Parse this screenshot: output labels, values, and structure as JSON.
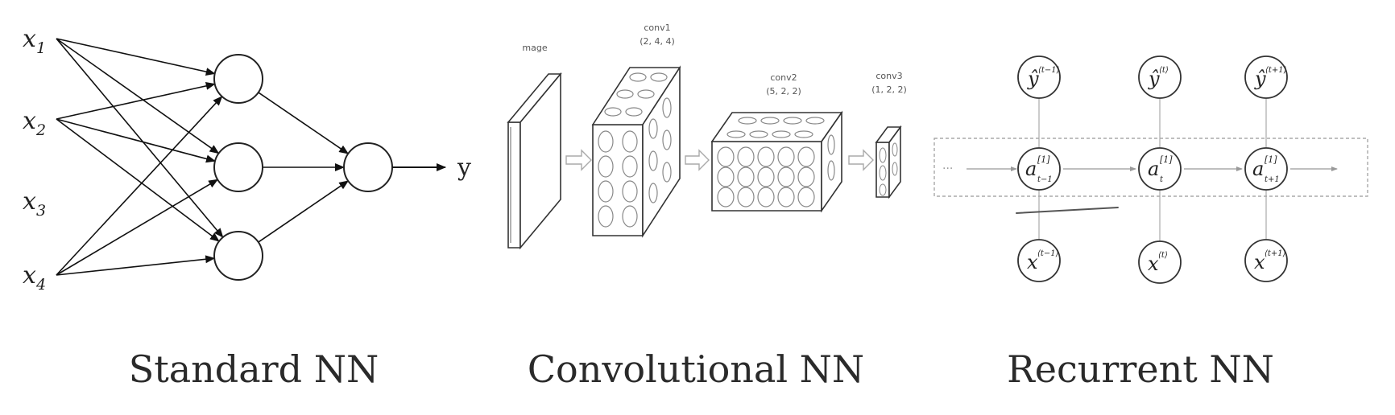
{
  "standard_nn": {
    "caption": "Standard NN",
    "inputs": [
      {
        "base": "x",
        "sub": "1"
      },
      {
        "base": "x",
        "sub": "2"
      },
      {
        "base": "x",
        "sub": "3"
      },
      {
        "base": "x",
        "sub": "4"
      }
    ],
    "output": "y"
  },
  "convolutional_nn": {
    "caption": "Convolutional NN",
    "image_label": "mage",
    "layers": [
      {
        "name": "conv1",
        "dims": "(2, 4, 4)"
      },
      {
        "name": "conv2",
        "dims": "(5, 2, 2)"
      },
      {
        "name": "conv3",
        "dims": "(1, 2, 2)"
      }
    ]
  },
  "recurrent_nn": {
    "caption": "Recurrent NN",
    "outputs": [
      {
        "base": "ŷ",
        "sup": "⟨t−1⟩"
      },
      {
        "base": "ŷ",
        "sup": "⟨t⟩"
      },
      {
        "base": "ŷ",
        "sup": "⟨t+1⟩"
      }
    ],
    "hidden": [
      {
        "base": "a",
        "sup": "[1]",
        "sub": "t−1"
      },
      {
        "base": "a",
        "sup": "[1]",
        "sub": "t"
      },
      {
        "base": "a",
        "sup": "[1]",
        "sub": "t+1"
      }
    ],
    "inputs": [
      {
        "base": "x",
        "sup": "⟨t−1⟩"
      },
      {
        "base": "x",
        "sup": "⟨t⟩"
      },
      {
        "base": "x",
        "sup": "⟨t+1⟩"
      }
    ],
    "ellipsis_left": "···",
    "ellipsis_right": "···"
  }
}
